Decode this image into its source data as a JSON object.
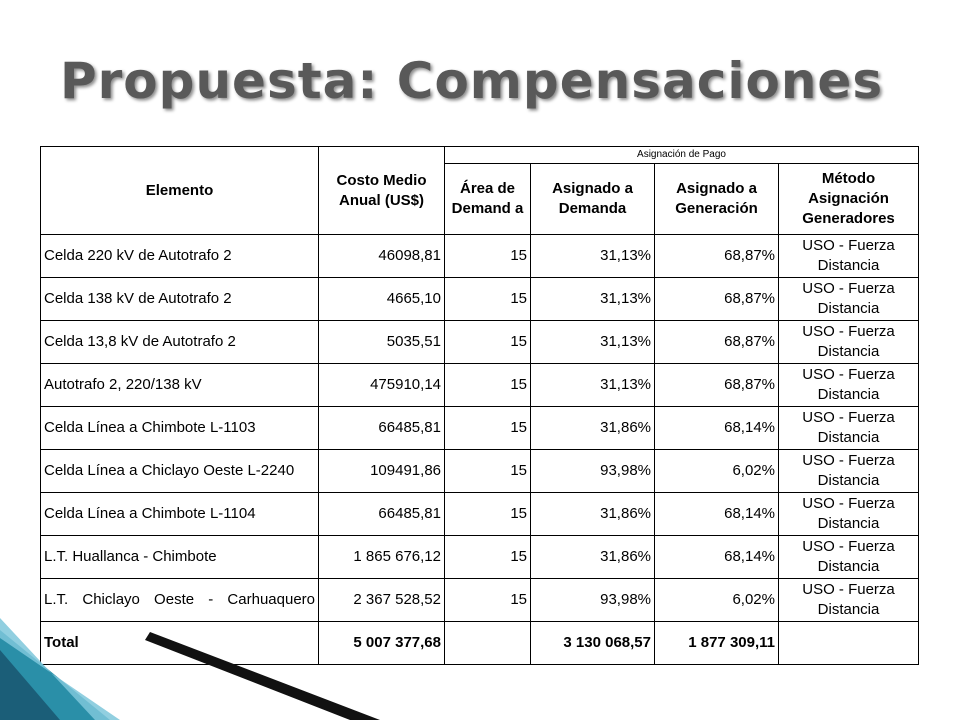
{
  "title": "Propuesta: Compensaciones",
  "table": {
    "headers": {
      "elemento": "Elemento",
      "costo": "Costo Medio Anual (US$)",
      "group": "Asignación de Pago",
      "area": "Área de Demand a",
      "demanda": "Asignado a Demanda",
      "generacion": "Asignado a Generación",
      "metodo": "Método Asignación Generadores"
    },
    "rows": [
      {
        "elemento": "Celda 220 kV de Autotrafo 2",
        "costo": "46098,81",
        "area": "15",
        "demanda": "31,13%",
        "generacion": "68,87%",
        "metodo": "USO - Fuerza Distancia"
      },
      {
        "elemento": "Celda 138 kV de Autotrafo 2",
        "costo": "4665,10",
        "area": "15",
        "demanda": "31,13%",
        "generacion": "68,87%",
        "metodo": "USO - Fuerza Distancia"
      },
      {
        "elemento": "Celda 13,8 kV de Autotrafo 2",
        "costo": "5035,51",
        "area": "15",
        "demanda": "31,13%",
        "generacion": "68,87%",
        "metodo": "USO - Fuerza Distancia"
      },
      {
        "elemento": "Autotrafo 2, 220/138 kV",
        "costo": "475910,14",
        "area": "15",
        "demanda": "31,13%",
        "generacion": "68,87%",
        "metodo": "USO - Fuerza Distancia"
      },
      {
        "elemento": "Celda Línea a Chimbote L-1103",
        "costo": "66485,81",
        "area": "15",
        "demanda": "31,86%",
        "generacion": "68,14%",
        "metodo": "USO - Fuerza Distancia"
      },
      {
        "elemento": "Celda Línea a Chiclayo Oeste L-2240",
        "costo": "109491,86",
        "area": "15",
        "demanda": "93,98%",
        "generacion": "6,02%",
        "metodo": "USO - Fuerza Distancia"
      },
      {
        "elemento": "Celda Línea a Chimbote L-1104",
        "costo": "66485,81",
        "area": "15",
        "demanda": "31,86%",
        "generacion": "68,14%",
        "metodo": "USO - Fuerza Distancia"
      },
      {
        "elemento": "L.T. Huallanca - Chimbote",
        "costo": "1 865 676,12",
        "area": "15",
        "demanda": "31,86%",
        "generacion": "68,14%",
        "metodo": "USO - Fuerza Distancia"
      },
      {
        "elemento": "L.T. Chiclayo Oeste - Carhuaquero",
        "costo": "2 367 528,52",
        "area": "15",
        "demanda": "93,98%",
        "generacion": "6,02%",
        "metodo": "USO - Fuerza Distancia"
      }
    ],
    "total": {
      "label": "Total",
      "costo": "5 007 377,68",
      "area": "",
      "demanda": "3 130 068,57",
      "generacion": "1 877 309,11",
      "metodo": ""
    }
  },
  "colors": {
    "title": "#595959",
    "accent_teal": "#2a8fa8",
    "accent_dark": "#1b5e78"
  }
}
